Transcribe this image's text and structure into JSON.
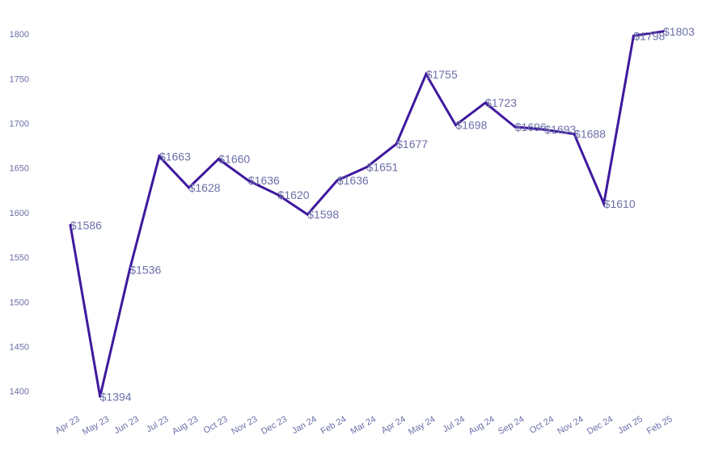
{
  "chart_data": {
    "type": "line",
    "title": "",
    "xlabel": "",
    "ylabel": "",
    "categories": [
      "Apr 23",
      "May 23",
      "Jun 23",
      "Jul 23",
      "Aug 23",
      "Oct 23",
      "Nov 23",
      "Dec 23",
      "Jan 24",
      "Feb 24",
      "Mar 24",
      "Apr 24",
      "May 24",
      "Jul 24",
      "Aug 24",
      "Sep 24",
      "Oct 24",
      "Nov 24",
      "Dec 24",
      "Jan 25",
      "Feb 25"
    ],
    "values": [
      1586,
      1394,
      1536,
      1663,
      1628,
      1660,
      1636,
      1620,
      1598,
      1636,
      1651,
      1677,
      1755,
      1698,
      1723,
      1696,
      1693,
      1688,
      1610,
      1798,
      1803
    ],
    "data_labels": [
      "$1586",
      "$1394",
      "$1536",
      "$1663",
      "$1628",
      "$1660",
      "$1636",
      "$1620",
      "$1598",
      "$1636",
      "$1651",
      "$1677",
      "$1755",
      "$1698",
      "$1723",
      "$1696",
      "$1693",
      "$1688",
      "$1610",
      "$1798",
      "$1803"
    ],
    "y_ticks": [
      1400,
      1450,
      1500,
      1550,
      1600,
      1650,
      1700,
      1750,
      1800
    ],
    "ylim": [
      1387,
      1820
    ],
    "grid": false,
    "legend": "none",
    "colors": {
      "line": "#3f189e",
      "labels": "#6b6fa8",
      "ticks": "#6b6fa8"
    }
  }
}
